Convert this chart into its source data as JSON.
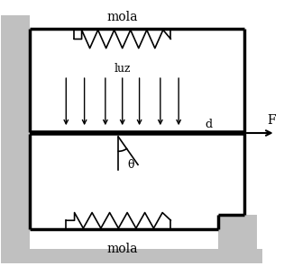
{
  "bg_color": "#ffffff",
  "line_color": "#000000",
  "wall_color": "#c0c0c0",
  "lw_thick": 2.5,
  "lw_thin": 1.2,
  "lw_med": 1.8,
  "fig_width": 3.15,
  "fig_height": 2.96,
  "label_mola_top": "mola",
  "label_mola_bot": "mola",
  "label_luz": "luz",
  "label_d": "d",
  "label_theta": "θ",
  "label_F": "F",
  "xlim": [
    0,
    10
  ],
  "ylim": [
    0,
    10
  ]
}
